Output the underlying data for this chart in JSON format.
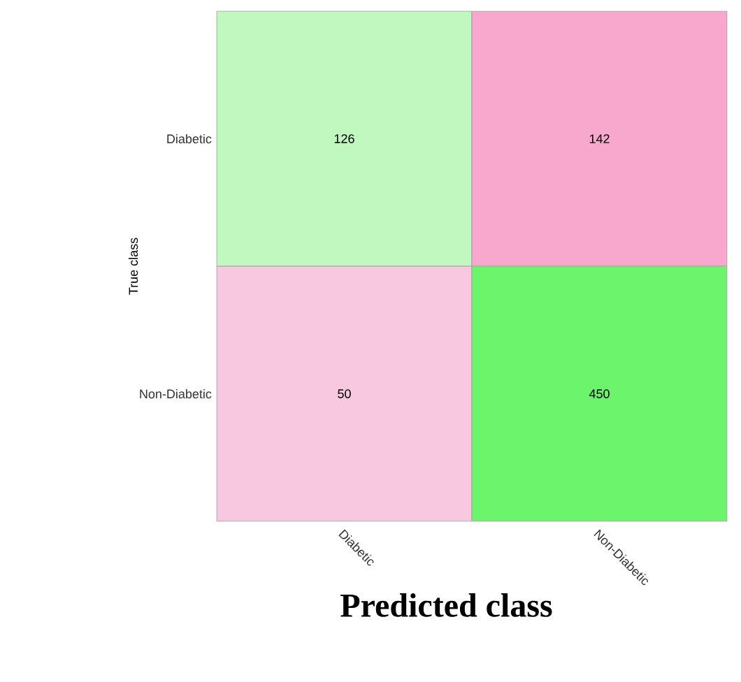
{
  "chart_data": {
    "type": "heatmap",
    "xlabel": "Predicted class",
    "ylabel": "True class",
    "categories": [
      "Diabetic",
      "Non-Diabetic"
    ],
    "y_categories": [
      "Diabetic",
      "Non-Diabetic"
    ],
    "cells": [
      [
        126,
        142
      ],
      [
        50,
        450
      ]
    ],
    "colors": [
      "#c0f8c0",
      "#f8a8cc",
      "#f8c8e0",
      "#6cf46c"
    ],
    "data_labels": true
  }
}
